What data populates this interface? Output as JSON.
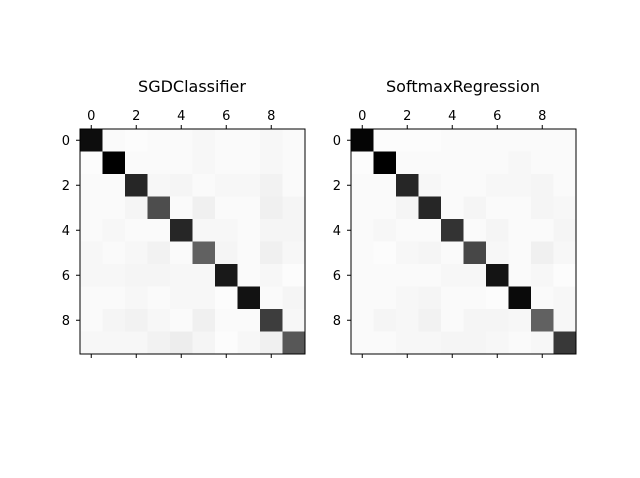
{
  "chart_data": [
    {
      "type": "heatmap",
      "title": "SGDClassifier",
      "colormap": "gray_r",
      "size": 10,
      "xticks": [
        0,
        2,
        4,
        6,
        8
      ],
      "yticks": [
        0,
        2,
        4,
        6,
        8
      ],
      "xtick_position": "top",
      "values": [
        [
          0.95,
          0.02,
          0.01,
          0.02,
          0.02,
          0.03,
          0.02,
          0.02,
          0.03,
          0.02
        ],
        [
          0.01,
          1.0,
          0.02,
          0.02,
          0.02,
          0.03,
          0.02,
          0.02,
          0.03,
          0.02
        ],
        [
          0.02,
          0.02,
          0.85,
          0.03,
          0.04,
          0.02,
          0.03,
          0.03,
          0.05,
          0.02
        ],
        [
          0.02,
          0.02,
          0.04,
          0.7,
          0.02,
          0.06,
          0.02,
          0.02,
          0.06,
          0.04
        ],
        [
          0.02,
          0.03,
          0.02,
          0.02,
          0.85,
          0.03,
          0.03,
          0.02,
          0.04,
          0.04
        ],
        [
          0.03,
          0.02,
          0.03,
          0.05,
          0.02,
          0.62,
          0.04,
          0.02,
          0.06,
          0.03
        ],
        [
          0.03,
          0.03,
          0.04,
          0.04,
          0.03,
          0.03,
          0.9,
          0.02,
          0.03,
          0.01
        ],
        [
          0.02,
          0.02,
          0.03,
          0.02,
          0.03,
          0.03,
          0.01,
          0.93,
          0.02,
          0.04
        ],
        [
          0.02,
          0.04,
          0.05,
          0.03,
          0.02,
          0.06,
          0.02,
          0.02,
          0.76,
          0.03
        ],
        [
          0.03,
          0.03,
          0.03,
          0.05,
          0.07,
          0.04,
          0.01,
          0.03,
          0.06,
          0.66
        ]
      ]
    },
    {
      "type": "heatmap",
      "title": "SoftmaxRegression",
      "colormap": "gray_r",
      "size": 10,
      "xticks": [
        0,
        2,
        4,
        6,
        8
      ],
      "yticks": [
        0,
        2,
        4,
        6,
        8
      ],
      "xtick_position": "top",
      "values": [
        [
          0.98,
          0.01,
          0.01,
          0.01,
          0.02,
          0.02,
          0.02,
          0.02,
          0.02,
          0.02
        ],
        [
          0.01,
          1.0,
          0.02,
          0.02,
          0.02,
          0.02,
          0.02,
          0.03,
          0.02,
          0.02
        ],
        [
          0.02,
          0.02,
          0.85,
          0.03,
          0.02,
          0.02,
          0.03,
          0.03,
          0.04,
          0.02
        ],
        [
          0.02,
          0.02,
          0.04,
          0.85,
          0.02,
          0.04,
          0.02,
          0.02,
          0.04,
          0.03
        ],
        [
          0.02,
          0.03,
          0.02,
          0.02,
          0.8,
          0.02,
          0.04,
          0.02,
          0.02,
          0.04
        ],
        [
          0.02,
          0.01,
          0.03,
          0.04,
          0.02,
          0.72,
          0.03,
          0.02,
          0.06,
          0.03
        ],
        [
          0.02,
          0.02,
          0.02,
          0.02,
          0.03,
          0.03,
          0.92,
          0.02,
          0.03,
          0.01
        ],
        [
          0.02,
          0.02,
          0.03,
          0.04,
          0.02,
          0.02,
          0.01,
          0.96,
          0.02,
          0.03
        ],
        [
          0.02,
          0.04,
          0.03,
          0.05,
          0.02,
          0.04,
          0.04,
          0.03,
          0.62,
          0.03
        ],
        [
          0.02,
          0.02,
          0.03,
          0.03,
          0.04,
          0.04,
          0.03,
          0.02,
          0.03,
          0.78
        ]
      ]
    }
  ]
}
